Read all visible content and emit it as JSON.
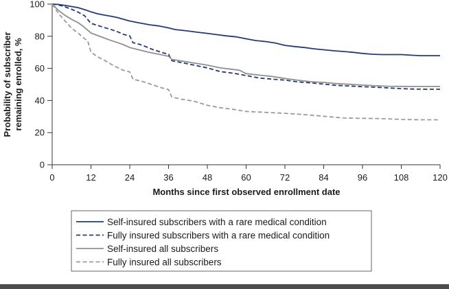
{
  "chart_data": {
    "type": "line",
    "title": "",
    "xlabel": "Months since first observed enrollment date",
    "ylabel": "Probability of subscriber remaining enrolled, %",
    "ylabel_lines": [
      "Probability of subscriber",
      "remaining enrolled, %"
    ],
    "xlim": [
      0,
      120
    ],
    "ylim": [
      0,
      100
    ],
    "x_ticks": [
      0,
      12,
      24,
      36,
      48,
      60,
      72,
      84,
      96,
      108,
      120
    ],
    "y_ticks": [
      0,
      20,
      40,
      60,
      80,
      100
    ],
    "grid": false,
    "legend_position": "bottom",
    "series": [
      {
        "name": "Self-insured subscribers with a rare medical condition",
        "color": "#1f3a7a",
        "dash": "solid",
        "points": [
          [
            0,
            100
          ],
          [
            2,
            99.8
          ],
          [
            4,
            99.2
          ],
          [
            6,
            98.5
          ],
          [
            8,
            97.8
          ],
          [
            10,
            96.6
          ],
          [
            12,
            95.2
          ],
          [
            14,
            94
          ],
          [
            16,
            93.2
          ],
          [
            18,
            92.5
          ],
          [
            20,
            91.7
          ],
          [
            22,
            90.6
          ],
          [
            24,
            89.5
          ],
          [
            27,
            88.3
          ],
          [
            30,
            87.2
          ],
          [
            33,
            86.4
          ],
          [
            36,
            85.2
          ],
          [
            38,
            84.2
          ],
          [
            42,
            83.3
          ],
          [
            45,
            82.5
          ],
          [
            48,
            81.8
          ],
          [
            51,
            81
          ],
          [
            54,
            80.2
          ],
          [
            57,
            79.6
          ],
          [
            60,
            78.4
          ],
          [
            63,
            77.3
          ],
          [
            66,
            76.7
          ],
          [
            69,
            75.8
          ],
          [
            72,
            74.3
          ],
          [
            75,
            73.6
          ],
          [
            78,
            73
          ],
          [
            81,
            72.2
          ],
          [
            84,
            71.6
          ],
          [
            87,
            71
          ],
          [
            90,
            70.5
          ],
          [
            93,
            70
          ],
          [
            96,
            69.3
          ],
          [
            99,
            68.8
          ],
          [
            102,
            68.6
          ],
          [
            105,
            68.6
          ],
          [
            108,
            68.6
          ],
          [
            111,
            68.2
          ],
          [
            114,
            67.9
          ],
          [
            117,
            67.9
          ],
          [
            120,
            67.9
          ]
        ]
      },
      {
        "name": "Fully insured subscribers with a rare medical condition",
        "color": "#1f3a7a",
        "dash": "dashed",
        "points": [
          [
            0,
            100
          ],
          [
            2,
            99.5
          ],
          [
            4,
            98.3
          ],
          [
            6,
            96.8
          ],
          [
            8,
            95
          ],
          [
            10,
            92.8
          ],
          [
            12,
            88
          ],
          [
            14,
            86.8
          ],
          [
            16,
            85.5
          ],
          [
            18,
            84.3
          ],
          [
            20,
            83
          ],
          [
            22,
            81.2
          ],
          [
            24,
            80.2
          ],
          [
            25,
            76
          ],
          [
            27,
            75
          ],
          [
            29,
            73.5
          ],
          [
            31,
            71.8
          ],
          [
            33,
            70.5
          ],
          [
            35,
            69.3
          ],
          [
            36,
            68.8
          ],
          [
            37,
            64.8
          ],
          [
            40,
            63.6
          ],
          [
            44,
            62
          ],
          [
            48,
            60.3
          ],
          [
            52,
            58
          ],
          [
            56,
            57
          ],
          [
            60,
            55.5
          ],
          [
            64,
            54
          ],
          [
            68,
            53.3
          ],
          [
            72,
            52.7
          ],
          [
            76,
            51.6
          ],
          [
            80,
            51
          ],
          [
            84,
            50.2
          ],
          [
            88,
            49.4
          ],
          [
            92,
            49
          ],
          [
            96,
            48.6
          ],
          [
            100,
            48.3
          ],
          [
            104,
            47.8
          ],
          [
            108,
            47.4
          ],
          [
            112,
            47.1
          ],
          [
            116,
            47
          ],
          [
            120,
            47
          ]
        ]
      },
      {
        "name": "Self-insured all subscribers",
        "color": "#8f8f8f",
        "dash": "solid",
        "points": [
          [
            0,
            100
          ],
          [
            2,
            96
          ],
          [
            4,
            93
          ],
          [
            6,
            90.5
          ],
          [
            8,
            88.5
          ],
          [
            10,
            85.5
          ],
          [
            12,
            82
          ],
          [
            14,
            80.5
          ],
          [
            16,
            79
          ],
          [
            18,
            77.5
          ],
          [
            20,
            76.2
          ],
          [
            22,
            74.8
          ],
          [
            24,
            73
          ],
          [
            27,
            71.5
          ],
          [
            30,
            70
          ],
          [
            33,
            68.8
          ],
          [
            36,
            67.5
          ],
          [
            37,
            65.6
          ],
          [
            40,
            64.6
          ],
          [
            44,
            63.3
          ],
          [
            48,
            62
          ],
          [
            52,
            60.3
          ],
          [
            56,
            59.3
          ],
          [
            58,
            58.8
          ],
          [
            60,
            56.7
          ],
          [
            64,
            55.8
          ],
          [
            68,
            55
          ],
          [
            72,
            53.7
          ],
          [
            76,
            52.6
          ],
          [
            80,
            51.7
          ],
          [
            84,
            51.3
          ],
          [
            88,
            50.5
          ],
          [
            92,
            50.1
          ],
          [
            96,
            49.6
          ],
          [
            100,
            49.2
          ],
          [
            104,
            48.9
          ],
          [
            108,
            48.8
          ],
          [
            112,
            48.7
          ],
          [
            116,
            48.7
          ],
          [
            120,
            48.7
          ]
        ]
      },
      {
        "name": "Fully insured all subscribers",
        "color": "#9a9a9a",
        "dash": "dashed",
        "points": [
          [
            0,
            100
          ],
          [
            2,
            94
          ],
          [
            4,
            89.5
          ],
          [
            6,
            85
          ],
          [
            8,
            82
          ],
          [
            10,
            78.5
          ],
          [
            11,
            77
          ],
          [
            12,
            70
          ],
          [
            14,
            67.3
          ],
          [
            16,
            65.2
          ],
          [
            18,
            62.8
          ],
          [
            20,
            60.7
          ],
          [
            22,
            58.8
          ],
          [
            24,
            57.8
          ],
          [
            25,
            53.3
          ],
          [
            28,
            51.8
          ],
          [
            31,
            49.8
          ],
          [
            34,
            47.8
          ],
          [
            36,
            46.8
          ],
          [
            37,
            42.2
          ],
          [
            40,
            40.8
          ],
          [
            44,
            39.5
          ],
          [
            48,
            37
          ],
          [
            52,
            35.5
          ],
          [
            56,
            34.5
          ],
          [
            60,
            33.2
          ],
          [
            66,
            32.6
          ],
          [
            72,
            32
          ],
          [
            78,
            31.2
          ],
          [
            84,
            30.2
          ],
          [
            90,
            29.1
          ],
          [
            96,
            28.9
          ],
          [
            100,
            28.8
          ],
          [
            104,
            28.6
          ],
          [
            108,
            28.2
          ],
          [
            114,
            28
          ],
          [
            120,
            28
          ]
        ]
      }
    ]
  }
}
